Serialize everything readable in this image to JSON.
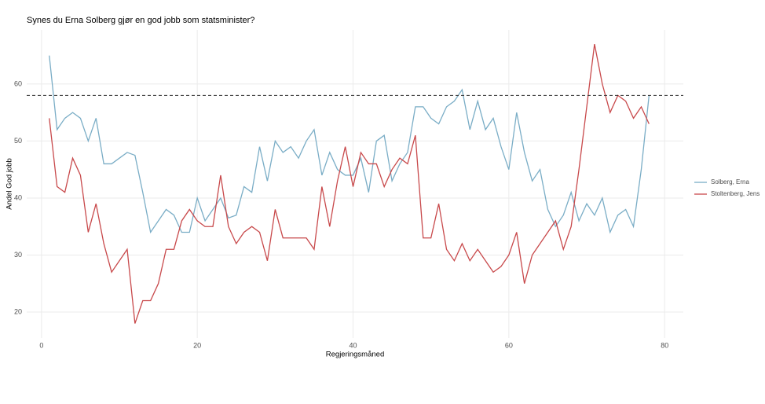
{
  "chart_data": {
    "type": "line",
    "title": "Synes du Erna Solberg gjør en god jobb som statsminister?",
    "x_label": "Regjeringsmåned",
    "y_label": "Andel God jobb",
    "x": [
      1,
      2,
      3,
      4,
      5,
      6,
      7,
      8,
      9,
      10,
      11,
      12,
      13,
      14,
      15,
      16,
      17,
      18,
      19,
      20,
      21,
      22,
      23,
      24,
      25,
      26,
      27,
      28,
      29,
      30,
      31,
      32,
      33,
      34,
      35,
      36,
      37,
      38,
      39,
      40,
      41,
      42,
      43,
      44,
      45,
      46,
      47,
      48,
      49,
      50,
      51,
      52,
      53,
      54,
      55,
      56,
      57,
      58,
      59,
      60,
      61,
      62,
      63,
      64,
      65,
      66,
      67,
      68,
      69,
      70,
      71,
      72,
      73,
      74,
      75,
      76,
      77,
      78
    ],
    "series": [
      {
        "name": "Solberg, Erna",
        "color": "#7aadc6",
        "values": [
          65,
          52,
          54,
          55,
          54,
          50,
          54,
          46,
          46,
          47,
          48,
          47.5,
          41,
          34,
          36,
          38,
          37,
          34,
          34,
          40,
          36,
          38,
          40,
          36.5,
          37,
          42,
          41,
          49,
          43,
          50,
          48,
          49,
          47,
          50,
          52,
          44,
          48,
          45,
          44,
          44,
          47,
          41,
          50,
          51,
          43,
          46,
          48,
          56,
          56,
          54,
          53,
          56,
          57,
          59,
          52,
          57,
          52,
          54,
          49,
          45,
          55,
          48,
          43,
          45,
          38,
          35,
          37,
          41,
          36,
          39,
          37,
          40,
          34,
          37,
          38,
          35,
          45,
          58
        ]
      },
      {
        "name": "Stoltenberg, Jens",
        "color": "#c8494b",
        "values": [
          54,
          42,
          41,
          47,
          44,
          34,
          39,
          32,
          27,
          29,
          31,
          18,
          22,
          22,
          25,
          31,
          31,
          36,
          38,
          36,
          35,
          35,
          44,
          35,
          32,
          34,
          35,
          34,
          29,
          38,
          33,
          33,
          33,
          33,
          31,
          42,
          35,
          43,
          49,
          42,
          48,
          46,
          46,
          42,
          45,
          47,
          46,
          51,
          33,
          33,
          39,
          31,
          29,
          32,
          29,
          31,
          29,
          27,
          28,
          30,
          34,
          25,
          30,
          32,
          34,
          36,
          31,
          35,
          45,
          56,
          67,
          60,
          55,
          58,
          57,
          54,
          56,
          53
        ]
      }
    ],
    "hline": 58,
    "xlim": [
      -1.9,
      82.4
    ],
    "xticks": [
      0,
      20,
      40,
      60,
      80
    ],
    "ylim": [
      15.45,
      69.5
    ],
    "yticks": [
      20,
      30,
      40,
      50,
      60
    ],
    "grid": true,
    "legend": "right"
  }
}
